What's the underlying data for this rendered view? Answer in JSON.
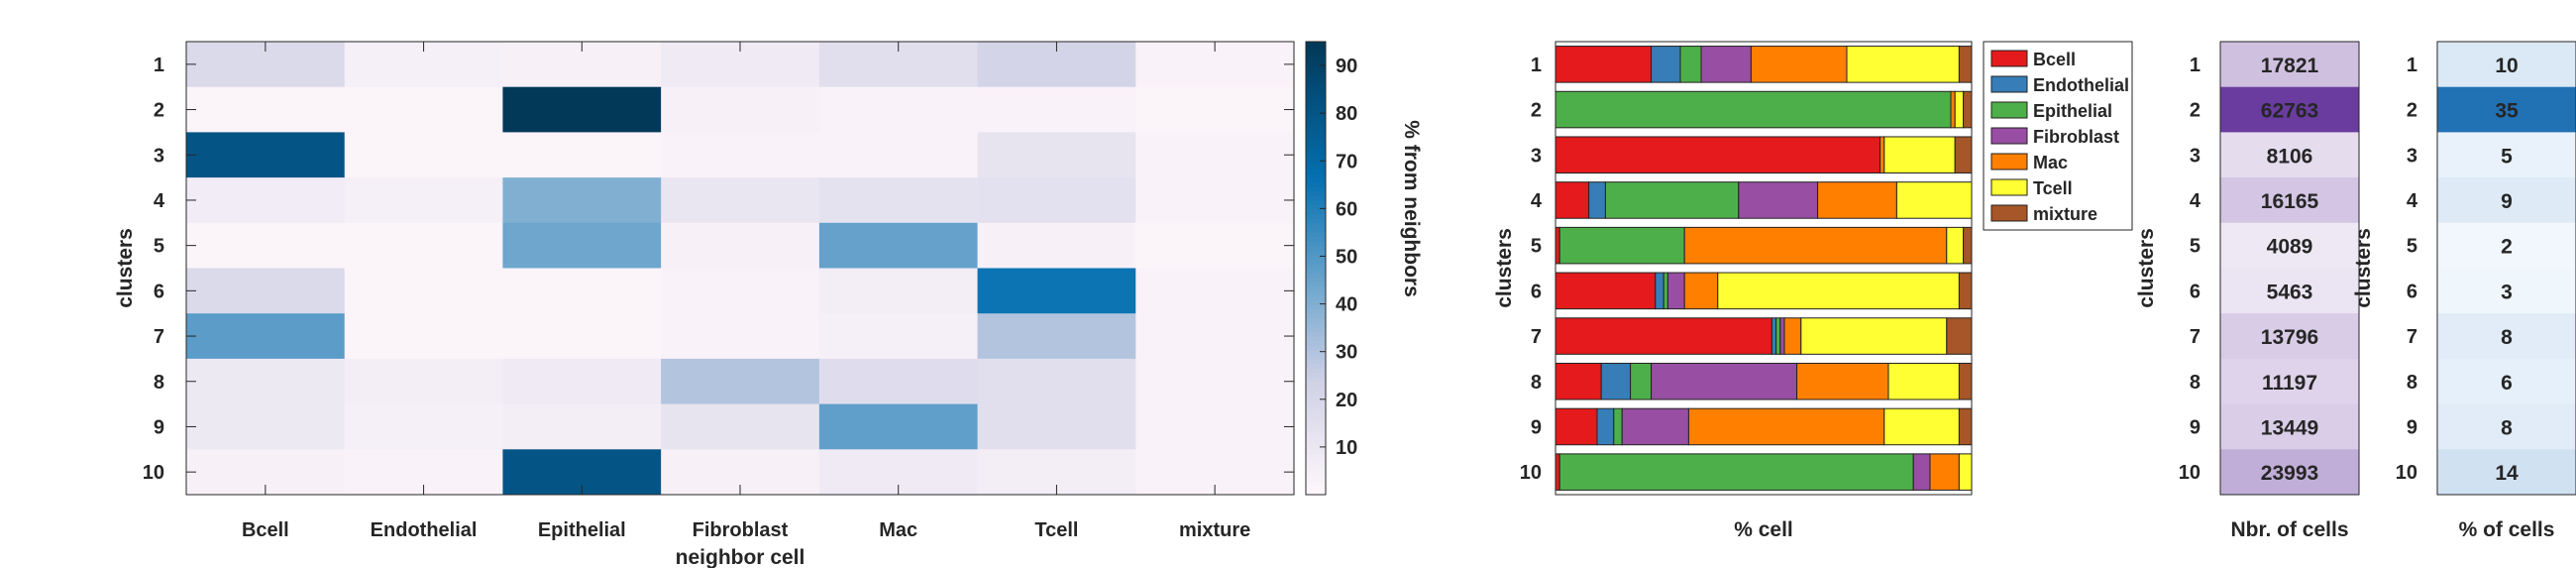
{
  "chart_data": [
    {
      "type": "heatmap",
      "xlabel": "neighbor cell",
      "ylabel": "clusters",
      "colorbar_label": "% from neighbors",
      "colorbar_ticks": [
        10,
        20,
        30,
        40,
        50,
        60,
        70,
        80,
        90
      ],
      "clim": [
        0,
        95
      ],
      "x": [
        "Bcell",
        "Endothelial",
        "Epithelial",
        "Fibroblast",
        "Mac",
        "Tcell",
        "mixture"
      ],
      "y": [
        "1",
        "2",
        "3",
        "4",
        "5",
        "6",
        "7",
        "8",
        "9",
        "10"
      ],
      "values": [
        [
          18,
          5,
          4,
          8,
          15,
          22,
          3
        ],
        [
          2,
          2,
          95,
          4,
          3,
          3,
          2
        ],
        [
          80,
          2,
          2,
          3,
          3,
          12,
          3
        ],
        [
          7,
          5,
          40,
          11,
          13,
          14,
          3
        ],
        [
          2,
          2,
          44,
          4,
          46,
          4,
          2
        ],
        [
          18,
          2,
          2,
          3,
          6,
          65,
          3
        ],
        [
          48,
          2,
          2,
          3,
          5,
          30,
          3
        ],
        [
          9,
          6,
          8,
          30,
          16,
          15,
          3
        ],
        [
          9,
          5,
          6,
          12,
          47,
          15,
          3
        ],
        [
          4,
          3,
          80,
          4,
          8,
          6,
          3
        ]
      ]
    },
    {
      "type": "bar",
      "orientation": "horizontal",
      "stacked": true,
      "xlabel": "% cell",
      "ylabel": "clusters",
      "xlim": [
        0,
        100
      ],
      "categories": [
        "1",
        "2",
        "3",
        "4",
        "5",
        "6",
        "7",
        "8",
        "9",
        "10"
      ],
      "legend_position": "top-right, outside",
      "series": [
        {
          "name": "Bcell",
          "color": "#e41a1c",
          "values": [
            23,
            0,
            78,
            8,
            1,
            24,
            52,
            11,
            10,
            1
          ]
        },
        {
          "name": "Endothelial",
          "color": "#377eb8",
          "values": [
            7,
            0,
            0,
            4,
            0,
            2,
            1,
            7,
            4,
            0
          ]
        },
        {
          "name": "Epithelial",
          "color": "#4daf4a",
          "values": [
            5,
            95,
            0,
            32,
            30,
            1,
            1,
            5,
            2,
            85
          ]
        },
        {
          "name": "Fibroblast",
          "color": "#984ea3",
          "values": [
            12,
            0,
            0,
            19,
            0,
            4,
            1,
            35,
            16,
            4
          ]
        },
        {
          "name": "Mac",
          "color": "#ff7f00",
          "values": [
            23,
            1,
            1,
            19,
            63,
            8,
            4,
            22,
            47,
            7
          ]
        },
        {
          "name": "Tcell",
          "color": "#ffff33",
          "values": [
            27,
            2,
            17,
            18,
            4,
            58,
            35,
            17,
            18,
            3
          ]
        },
        {
          "name": "mixture",
          "color": "#a65628",
          "values": [
            3,
            2,
            4,
            0,
            2,
            3,
            6,
            3,
            3,
            0
          ]
        }
      ]
    },
    {
      "type": "table",
      "xlabel": "Nbr. of cells",
      "ylabel": "clusters",
      "categories": [
        "1",
        "2",
        "3",
        "4",
        "5",
        "6",
        "7",
        "8",
        "9",
        "10"
      ],
      "values": [
        17821,
        62763,
        8106,
        16165,
        4089,
        5463,
        13796,
        11197,
        13449,
        23993
      ]
    },
    {
      "type": "table",
      "xlabel": "% of cells",
      "ylabel": "clusters",
      "categories": [
        "1",
        "2",
        "3",
        "4",
        "5",
        "6",
        "7",
        "8",
        "9",
        "10"
      ],
      "values": [
        10,
        35,
        5,
        9,
        2,
        3,
        8,
        6,
        8,
        14
      ]
    }
  ]
}
